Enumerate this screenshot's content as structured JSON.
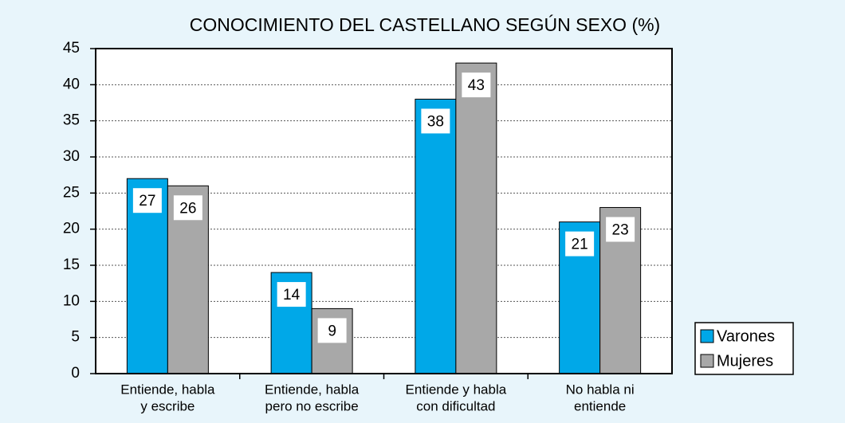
{
  "chart_data": {
    "type": "bar",
    "title": "CONOCIMIENTO DEL CASTELLANO SEGÚN SEXO (%)",
    "categories": [
      [
        "Entiende, habla",
        "y escribe"
      ],
      [
        "Entiende, habla",
        "pero no escribe"
      ],
      [
        "Entiende y habla",
        "con dificultad"
      ],
      [
        "No habla ni",
        "entiende"
      ]
    ],
    "series": [
      {
        "name": "Varones",
        "color": "#00a8e8",
        "values": [
          27,
          14,
          38,
          21
        ]
      },
      {
        "name": "Mujeres",
        "color": "#a8a8a8",
        "values": [
          26,
          9,
          43,
          23
        ]
      }
    ],
    "ylim": [
      0,
      45
    ],
    "yticks": [
      0,
      5,
      10,
      15,
      20,
      25,
      30,
      35,
      40,
      45
    ],
    "grid": true,
    "legend": "bottom-right"
  }
}
